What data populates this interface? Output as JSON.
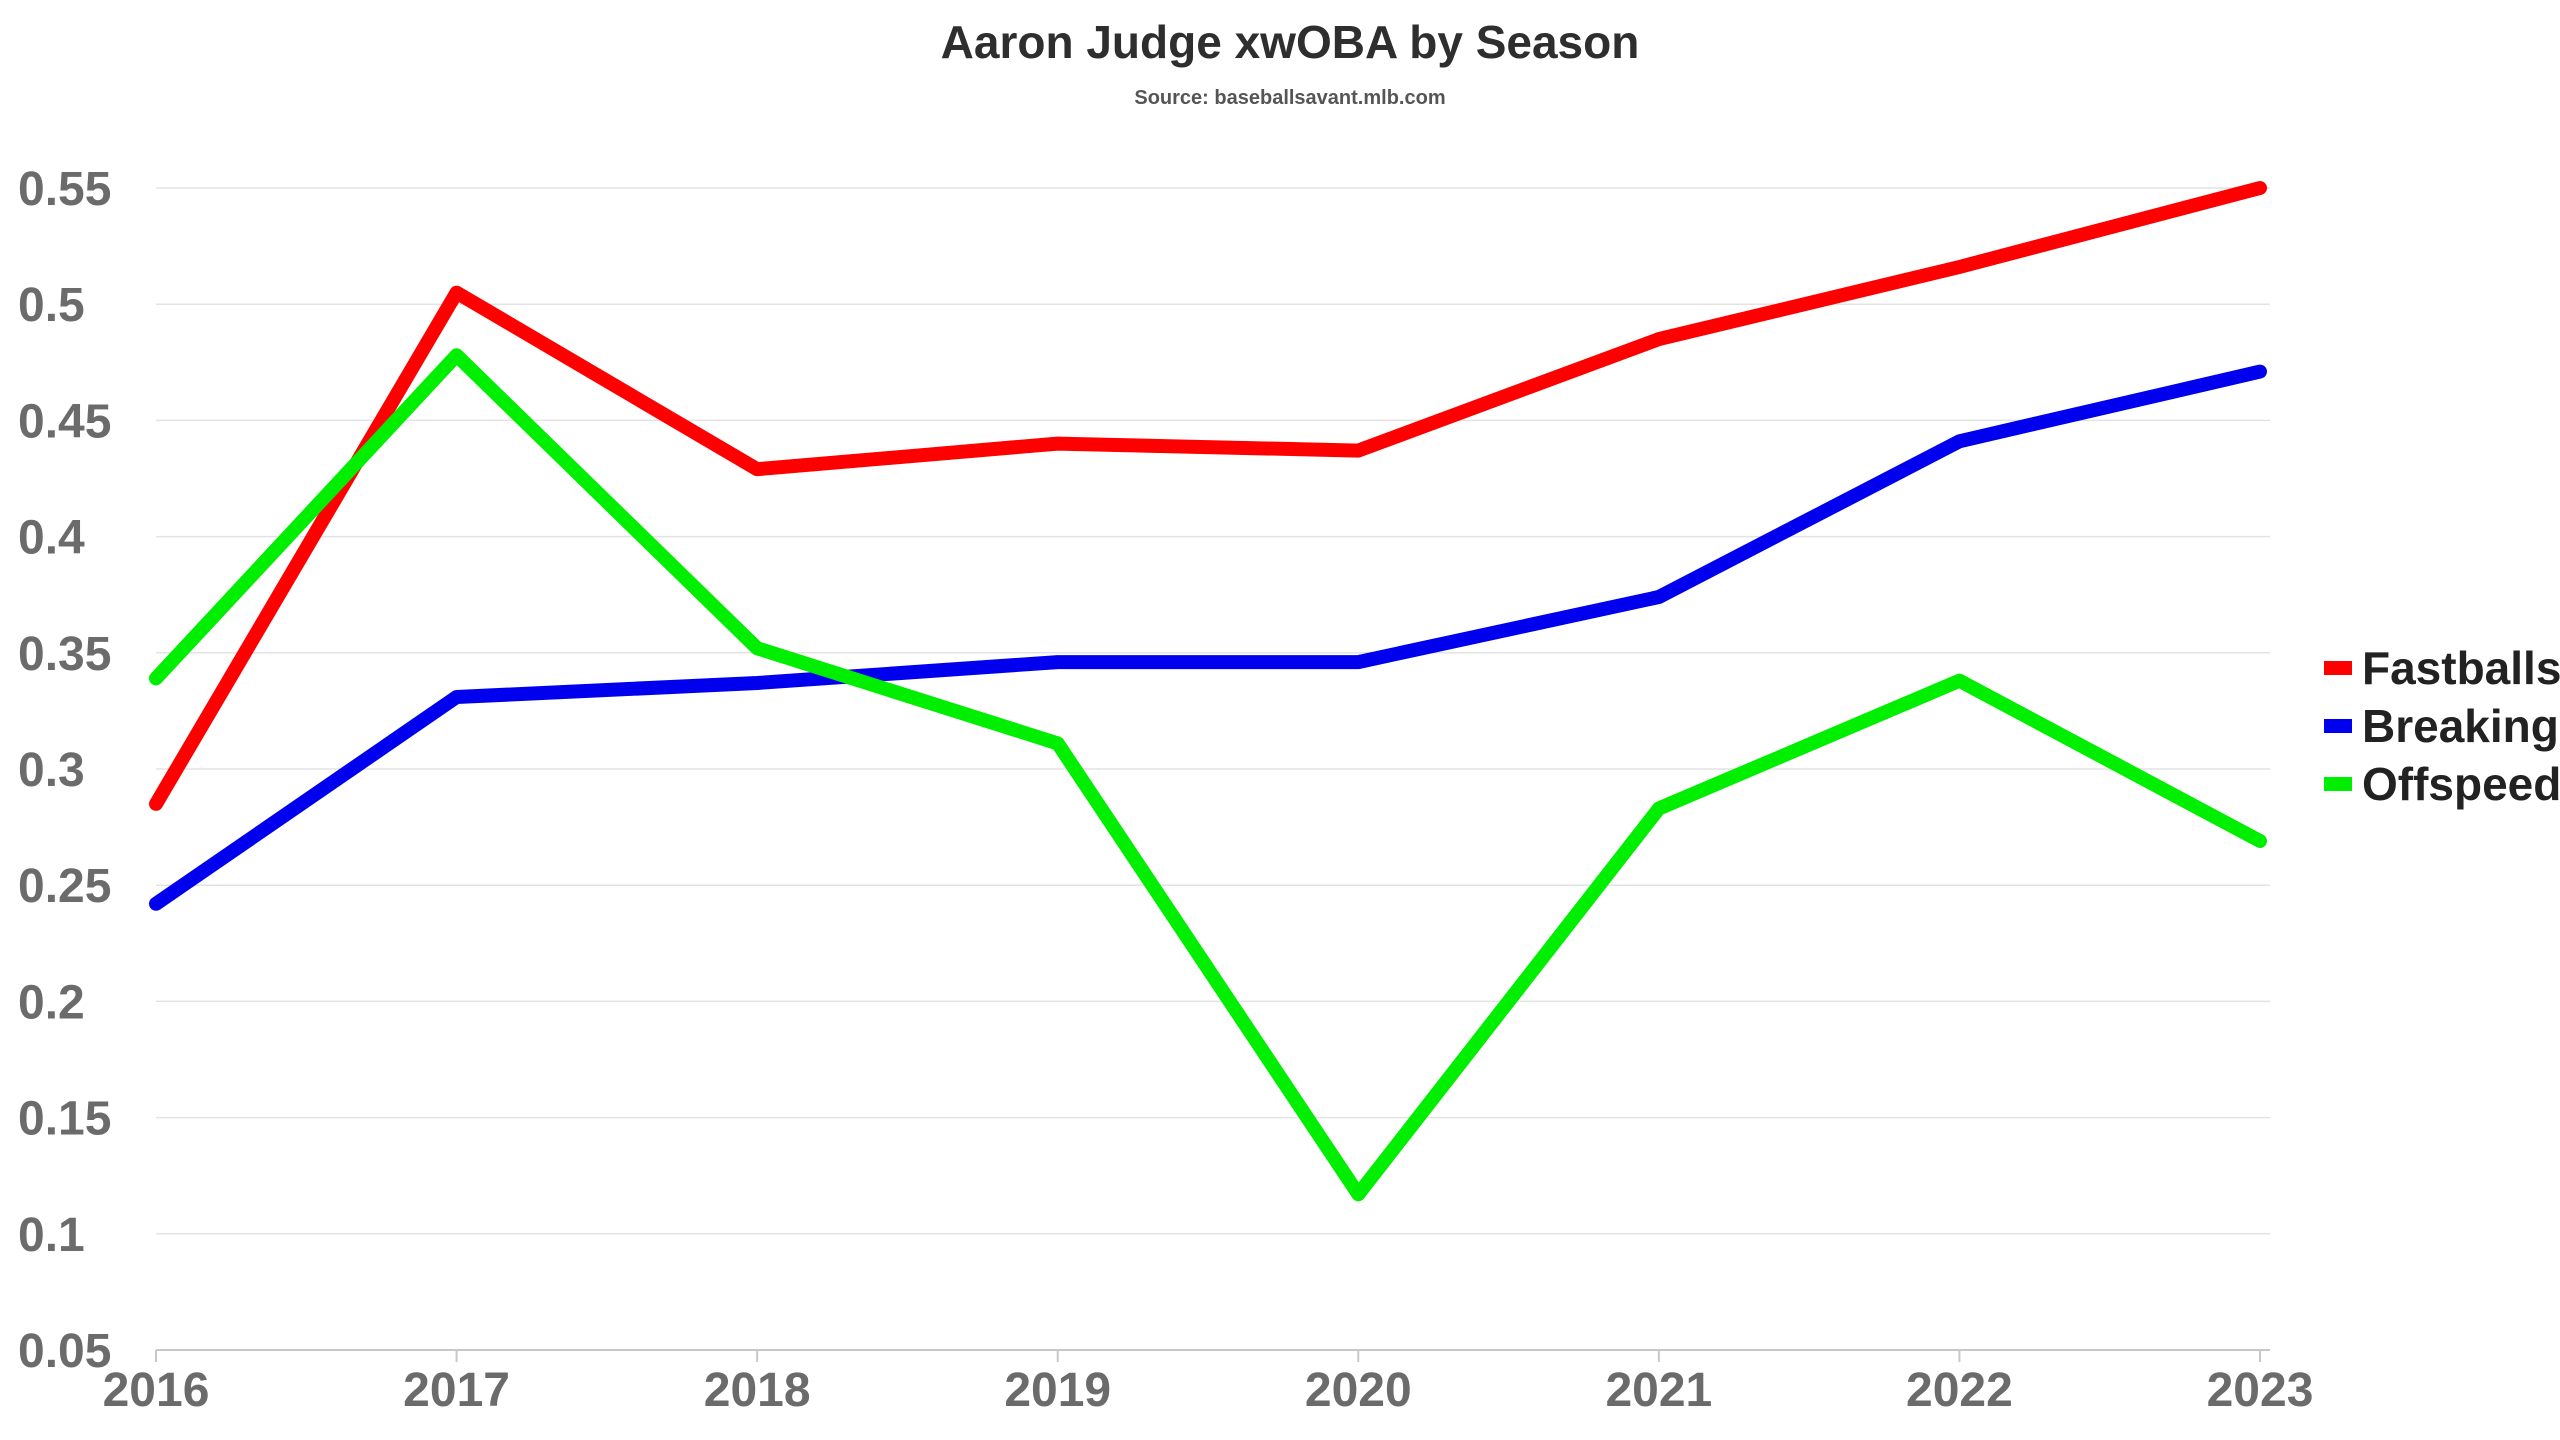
{
  "chart_data": {
    "type": "line",
    "title": "Aaron Judge xwOBA by Season",
    "subtitle": "Source: baseballsavant.mlb.com",
    "xlabel": "",
    "ylabel": "",
    "x": [
      "2016",
      "2017",
      "2018",
      "2019",
      "2020",
      "2021",
      "2022",
      "2023"
    ],
    "ylim": [
      0.05,
      0.55
    ],
    "yticks": [
      "0.05",
      "0.1",
      "0.15",
      "0.2",
      "0.25",
      "0.3",
      "0.35",
      "0.4",
      "0.45",
      "0.5",
      "0.55"
    ],
    "grid": true,
    "legend_position": "right",
    "series": [
      {
        "name": "Fastballs",
        "color": "#ff0000",
        "values": [
          0.285,
          0.505,
          0.429,
          0.44,
          0.437,
          0.485,
          0.516,
          0.55
        ]
      },
      {
        "name": "Breaking",
        "color": "#0000ee",
        "values": [
          0.242,
          0.331,
          0.337,
          0.346,
          0.346,
          0.374,
          0.441,
          0.471
        ]
      },
      {
        "name": "Offspeed",
        "color": "#00ee00",
        "values": [
          0.339,
          0.478,
          0.352,
          0.311,
          0.117,
          0.283,
          0.338,
          0.269
        ]
      }
    ]
  }
}
